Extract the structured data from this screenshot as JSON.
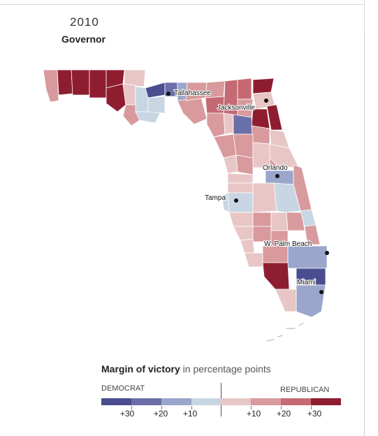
{
  "header": {
    "year": "2010",
    "title": "Governor"
  },
  "map": {
    "cities": [
      {
        "name": "Tallahassee"
      },
      {
        "name": "Jacksonville"
      },
      {
        "name": "Orlando"
      },
      {
        "name": "Tampa"
      },
      {
        "name": "W. Palm Beach"
      },
      {
        "name": "Miami"
      }
    ]
  },
  "legend": {
    "title_bold": "Margin of victory",
    "title_rest": " in percentage points",
    "left_label": "DEMOCRAT",
    "right_label": "REPUBLICAN",
    "dem_colors": [
      "#4a4e8f",
      "#6b6fa8",
      "#9aa6cb",
      "#c8d5e2"
    ],
    "rep_colors": [
      "#e8c6c6",
      "#d89a9d",
      "#c56a72",
      "#8e1d30"
    ],
    "dem_ticks": [
      "+30",
      "+20",
      "+10"
    ],
    "rep_ticks": [
      "+10",
      "+20",
      "+30"
    ]
  }
}
